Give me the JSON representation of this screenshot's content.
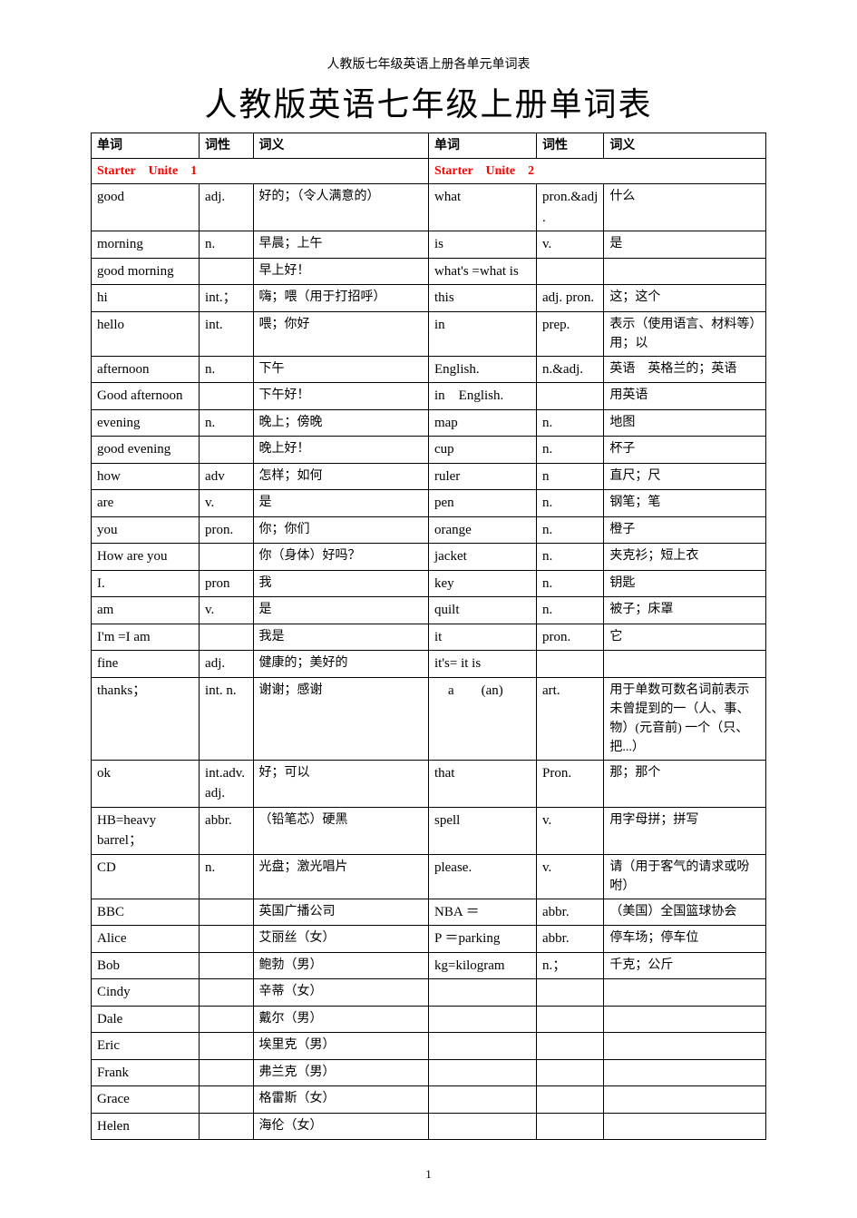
{
  "smallTitle": "人教版七年级英语上册各单元单词表",
  "bigTitle": "人教版英语七年级上册单词表",
  "pageNumber": "1",
  "headers": {
    "word": "单词",
    "pos": "词性",
    "meaning": "词义"
  },
  "unit1Label": "Starter　Unite　1",
  "unit2Label": "Starter　Unite　2",
  "rows": [
    {
      "w1": "good",
      "p1": "adj.",
      "m1": "好的；（令人满意的）",
      "w2": "what",
      "p2": "pron.&adj.",
      "m2": "什么"
    },
    {
      "w1": "morning",
      "p1": "n.",
      "m1": "早晨；上午",
      "w2": "is",
      "p2": "v.",
      "m2": "是"
    },
    {
      "w1": "good morning",
      "p1": "",
      "m1": "早上好！",
      "w2": "what's =what is",
      "p2": "",
      "m2": ""
    },
    {
      "w1": "hi",
      "p1": "int.；",
      "m1": "嗨；喂（用于打招呼）",
      "w2": "this",
      "p2": "adj. pron.",
      "m2": "这；这个"
    },
    {
      "w1": "hello",
      "p1": "int.",
      "m1": "喂；你好",
      "w2": "in",
      "p2": "prep.",
      "m2": "表示（使用语言、材料等）用；以"
    },
    {
      "w1": "afternoon",
      "p1": "n.",
      "m1": "下午",
      "w2": "English.",
      "p2": "n.&adj.",
      "m2": "英语　英格兰的；英语"
    },
    {
      "w1": "Good afternoon",
      "p1": "",
      "m1": "下午好！",
      "w2": "in　English.",
      "p2": "",
      "m2": "用英语"
    },
    {
      "w1": "evening",
      "p1": "n.",
      "m1": "晚上；傍晚",
      "w2": "map",
      "p2": "n.",
      "m2": "地图"
    },
    {
      "w1": "good evening",
      "p1": "",
      "m1": "晚上好！",
      "w2": "cup",
      "p2": "n.",
      "m2": "杯子"
    },
    {
      "w1": "how",
      "p1": "adv",
      "m1": "怎样；如何",
      "w2": "ruler",
      "p2": "n",
      "m2": "直尺；尺"
    },
    {
      "w1": "are",
      "p1": "v.",
      "m1": "是",
      "w2": "pen",
      "p2": "n.",
      "m2": "钢笔；笔"
    },
    {
      "w1": "you",
      "p1": "pron.",
      "m1": "你；你们",
      "w2": "orange",
      "p2": "n.",
      "m2": "橙子"
    },
    {
      "w1": "How are you",
      "p1": "",
      "m1": "你（身体）好吗？",
      "w2": "jacket",
      "p2": "n.",
      "m2": "夹克衫；短上衣"
    },
    {
      "w1": "I.",
      "p1": "pron",
      "m1": "我",
      "w2": "key",
      "p2": "n.",
      "m2": "钥匙"
    },
    {
      "w1": "am",
      "p1": "v.",
      "m1": "是",
      "w2": "quilt",
      "p2": "n.",
      "m2": "被子；床罩"
    },
    {
      "w1": "I'm =I am",
      "p1": "",
      "m1": "我是",
      "w2": "it",
      "p2": "pron.",
      "m2": "它"
    },
    {
      "w1": "fine",
      "p1": "adj.",
      "m1": "健康的；美好的",
      "w2": "it's= it is",
      "p2": "",
      "m2": ""
    },
    {
      "w1": "thanks；",
      "p1": "int. n.",
      "m1": "谢谢；感谢",
      "w2": "　a　　(an)",
      "p2": "art.",
      "m2": "用于单数可数名词前表示未曾提到的一（人、事、物）(元音前) 一个（只、把...）"
    },
    {
      "w1": "ok",
      "p1": "int.adv.adj.",
      "m1": "好；可以",
      "w2": "that",
      "p2": "Pron.",
      "m2": "那；那个"
    },
    {
      "w1": "HB=heavy barrel；",
      "p1": "abbr.",
      "m1": "（铅笔芯）硬黑",
      "w2": "spell",
      "p2": "v.",
      "m2": "用字母拼；拼写"
    },
    {
      "w1": "CD",
      "p1": "n.",
      "m1": "光盘；激光唱片",
      "w2": "please.",
      "p2": "v.",
      "m2": "请（用于客气的请求或吩咐）"
    },
    {
      "w1": "BBC",
      "p1": "",
      "m1": "英国广播公司",
      "w2": "NBA ＝",
      "p2": "abbr.",
      "m2": "（美国）全国篮球协会"
    },
    {
      "w1": "Alice",
      "p1": "",
      "m1": "艾丽丝（女）",
      "w2": "P ＝parking",
      "p2": "abbr.",
      "m2": "停车场；停车位"
    },
    {
      "w1": "Bob",
      "p1": "",
      "m1": "鲍勃（男）",
      "w2": "kg=kilogram",
      "p2": "n.；",
      "m2": "千克；公斤"
    },
    {
      "w1": "Cindy",
      "p1": "",
      "m1": "辛蒂（女）",
      "w2": "",
      "p2": "",
      "m2": ""
    },
    {
      "w1": "Dale",
      "p1": "",
      "m1": "戴尔（男）",
      "w2": "",
      "p2": "",
      "m2": ""
    },
    {
      "w1": "Eric",
      "p1": "",
      "m1": "埃里克（男）",
      "w2": "",
      "p2": "",
      "m2": ""
    },
    {
      "w1": "Frank",
      "p1": "",
      "m1": "弗兰克（男）",
      "w2": "",
      "p2": "",
      "m2": ""
    },
    {
      "w1": "Grace",
      "p1": "",
      "m1": "格雷斯（女）",
      "w2": "",
      "p2": "",
      "m2": ""
    },
    {
      "w1": "Helen",
      "p1": "",
      "m1": "海伦（女）",
      "w2": "",
      "p2": "",
      "m2": ""
    }
  ]
}
